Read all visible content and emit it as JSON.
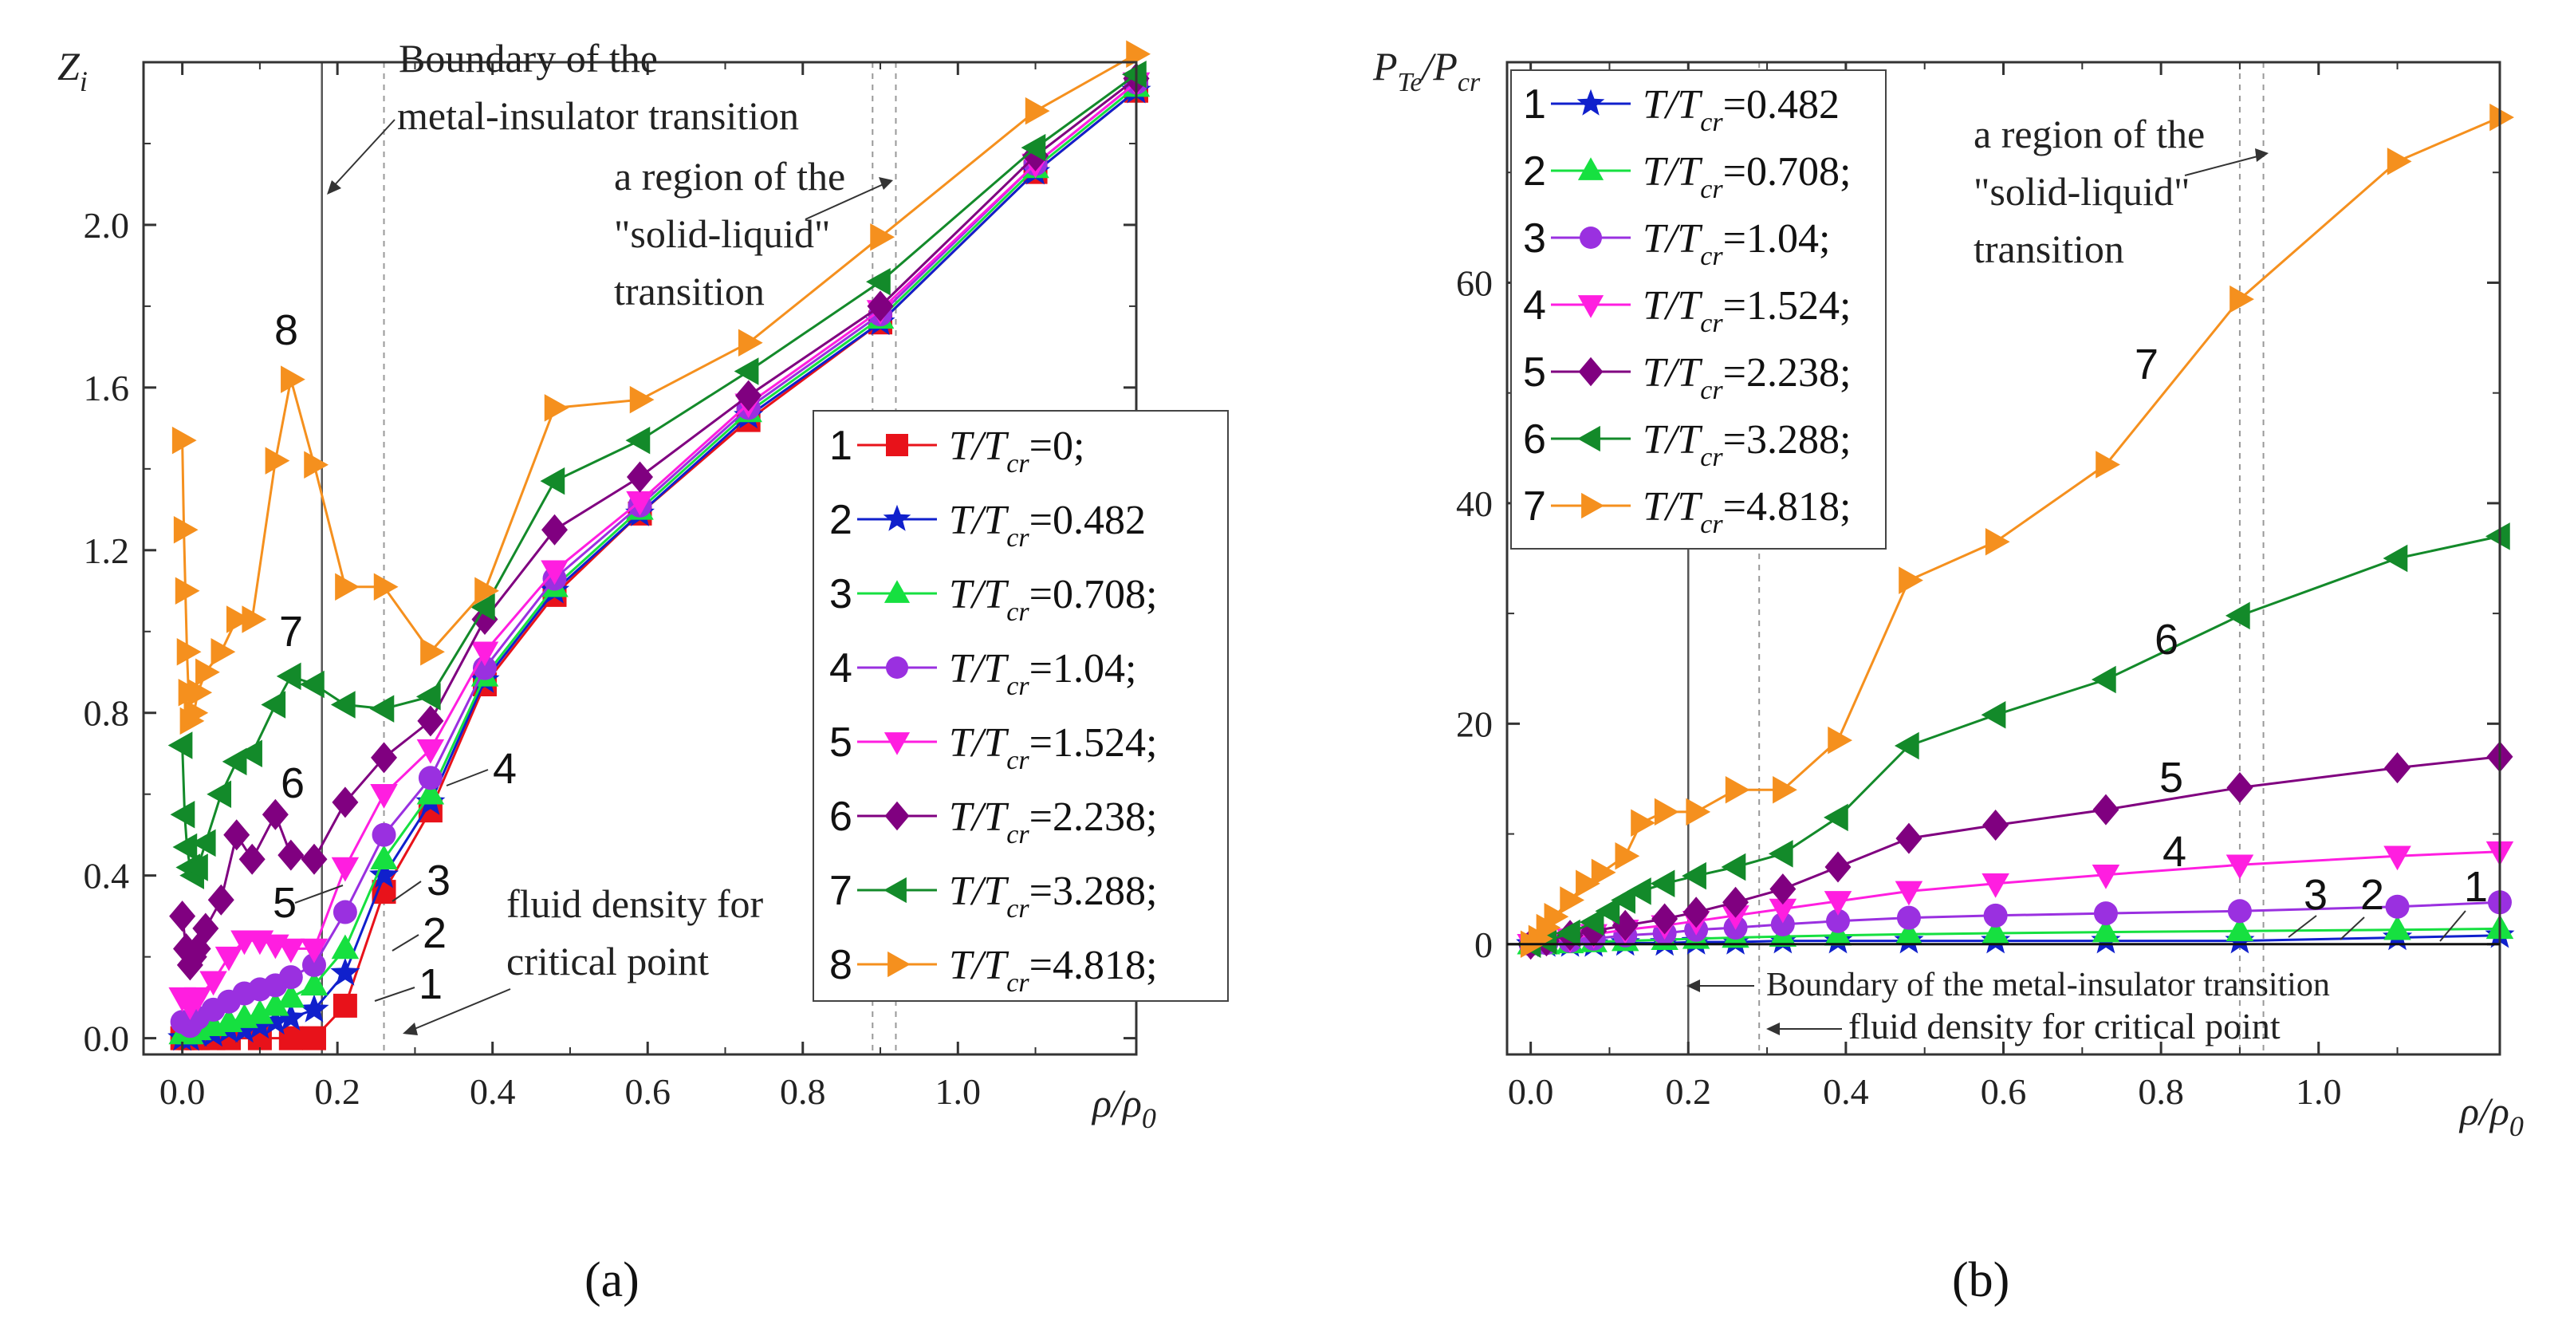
{
  "chart_data": [
    {
      "type": "line",
      "panel_label": "(a)",
      "ylabel_main": "Z",
      "ylabel_sub": "i",
      "xlabel_main": "ρ/ρ",
      "xlabel_sub": "0",
      "xlim": [
        -0.05,
        1.23
      ],
      "ylim": [
        -0.04,
        2.4
      ],
      "xticks": [
        "0.0",
        "0.2",
        "0.4",
        "0.6",
        "0.8",
        "1.0"
      ],
      "xtick_values": [
        0,
        0.2,
        0.4,
        0.6,
        0.8,
        1.0
      ],
      "yticks": [
        "0.0",
        "0.4",
        "0.8",
        "1.2",
        "1.6",
        "2.0"
      ],
      "ytick_values": [
        0,
        0.4,
        0.8,
        1.2,
        1.6,
        2.0
      ],
      "vlines": [
        {
          "x": 0.18,
          "style": "solid"
        },
        {
          "x": 0.26,
          "style": "dotted"
        },
        {
          "x": 0.89,
          "style": "dotted"
        },
        {
          "x": 0.92,
          "style": "dotted"
        }
      ],
      "annotations": [
        {
          "lines": [
            "Boundary of the",
            "metal-insulator transition"
          ]
        },
        {
          "lines": [
            "a region of the",
            "\"solid-liquid\"",
            "transition"
          ]
        },
        {
          "lines": [
            "fluid density for",
            "critical point"
          ]
        }
      ],
      "series": [
        {
          "id": "1",
          "name_main": "T/T",
          "name_sub": "cr",
          "name_value": "=0;",
          "color": "#e8121a",
          "marker": "square",
          "x": [
            0,
            0.01,
            0.02,
            0.04,
            0.06,
            0.1,
            0.14,
            0.17,
            0.21,
            0.26,
            0.32,
            0.39,
            0.48,
            0.59,
            0.73,
            0.9,
            1.1,
            1.23
          ],
          "y": [
            0,
            0,
            0,
            0,
            0,
            0,
            0,
            0,
            0.08,
            0.36,
            0.56,
            0.87,
            1.09,
            1.29,
            1.52,
            1.76,
            2.13,
            2.33
          ]
        },
        {
          "id": "2",
          "name_main": "T/T",
          "name_sub": "cr",
          "name_value": "=0.482",
          "color": "#1020cc",
          "marker": "star",
          "x": [
            0,
            0.01,
            0.02,
            0.04,
            0.06,
            0.08,
            0.1,
            0.12,
            0.14,
            0.17,
            0.21,
            0.26,
            0.32,
            0.39,
            0.48,
            0.59,
            0.73,
            0.9,
            1.1,
            1.23
          ],
          "y": [
            0,
            0,
            0.01,
            0.01,
            0.02,
            0.02,
            0.03,
            0.04,
            0.05,
            0.07,
            0.16,
            0.4,
            0.58,
            0.88,
            1.1,
            1.29,
            1.53,
            1.76,
            2.13,
            2.33
          ]
        },
        {
          "id": "3",
          "name_main": "T/T",
          "name_sub": "cr",
          "name_value": "=0.708;",
          "color": "#16e040",
          "marker": "triangle-up",
          "x": [
            0,
            0.01,
            0.02,
            0.04,
            0.06,
            0.08,
            0.1,
            0.12,
            0.14,
            0.17,
            0.21,
            0.26,
            0.32,
            0.39,
            0.48,
            0.59,
            0.73,
            0.9,
            1.1,
            1.23
          ],
          "y": [
            0.01,
            0.01,
            0.02,
            0.03,
            0.04,
            0.05,
            0.06,
            0.08,
            0.1,
            0.13,
            0.22,
            0.44,
            0.6,
            0.89,
            1.11,
            1.3,
            1.54,
            1.77,
            2.14,
            2.34
          ]
        },
        {
          "id": "4",
          "name_main": "T/T",
          "name_sub": "cr",
          "name_value": "=1.04;",
          "color": "#9a30e0",
          "marker": "circle",
          "x": [
            0,
            0.01,
            0.02,
            0.04,
            0.06,
            0.08,
            0.1,
            0.12,
            0.14,
            0.17,
            0.21,
            0.26,
            0.32,
            0.39,
            0.48,
            0.59,
            0.73,
            0.9,
            1.1,
            1.23
          ],
          "y": [
            0.04,
            0.03,
            0.05,
            0.07,
            0.09,
            0.11,
            0.12,
            0.13,
            0.15,
            0.18,
            0.31,
            0.5,
            0.64,
            0.91,
            1.13,
            1.31,
            1.55,
            1.78,
            2.15,
            2.35
          ]
        },
        {
          "id": "5",
          "name_main": "T/T",
          "name_sub": "cr",
          "name_value": "=1.524;",
          "color": "#ff1ee0",
          "marker": "triangle-down",
          "x": [
            0,
            0.01,
            0.02,
            0.04,
            0.06,
            0.08,
            0.1,
            0.12,
            0.14,
            0.17,
            0.21,
            0.26,
            0.32,
            0.39,
            0.48,
            0.59,
            0.73,
            0.9,
            1.1,
            1.23
          ],
          "y": [
            0.1,
            0.08,
            0.1,
            0.14,
            0.2,
            0.24,
            0.24,
            0.23,
            0.22,
            0.22,
            0.42,
            0.6,
            0.71,
            0.95,
            1.15,
            1.32,
            1.56,
            1.79,
            2.15,
            2.35
          ]
        },
        {
          "id": "6",
          "name_main": "T/T",
          "name_sub": "cr",
          "name_value": "=2.238;",
          "color": "#800080",
          "marker": "diamond",
          "x": [
            0,
            0.005,
            0.01,
            0.015,
            0.02,
            0.03,
            0.05,
            0.07,
            0.09,
            0.12,
            0.14,
            0.17,
            0.21,
            0.26,
            0.32,
            0.39,
            0.48,
            0.59,
            0.73,
            0.9,
            1.1,
            1.23
          ],
          "y": [
            0.3,
            0.22,
            0.18,
            0.2,
            0.22,
            0.27,
            0.34,
            0.5,
            0.44,
            0.55,
            0.45,
            0.44,
            0.58,
            0.69,
            0.78,
            1.03,
            1.25,
            1.38,
            1.58,
            1.8,
            2.17,
            2.36
          ]
        },
        {
          "id": "7",
          "name_main": "T/T",
          "name_sub": "cr",
          "name_value": "=3.288;",
          "color": "#138a2a",
          "marker": "triangle-left",
          "x": [
            0,
            0.003,
            0.006,
            0.01,
            0.015,
            0.02,
            0.03,
            0.05,
            0.07,
            0.09,
            0.12,
            0.14,
            0.17,
            0.21,
            0.26,
            0.32,
            0.39,
            0.48,
            0.59,
            0.73,
            0.9,
            1.1,
            1.23
          ],
          "y": [
            0.72,
            0.55,
            0.47,
            0.42,
            0.4,
            0.42,
            0.48,
            0.6,
            0.68,
            0.7,
            0.82,
            0.89,
            0.87,
            0.82,
            0.81,
            0.84,
            1.06,
            1.37,
            1.47,
            1.64,
            1.86,
            2.19,
            2.37
          ]
        },
        {
          "id": "8",
          "name_main": "T/T",
          "name_sub": "cr",
          "name_value": "=4.818;",
          "color": "#f5901e",
          "marker": "triangle-right",
          "x": [
            0,
            0.002,
            0.004,
            0.006,
            0.008,
            0.01,
            0.015,
            0.02,
            0.03,
            0.05,
            0.07,
            0.09,
            0.12,
            0.14,
            0.17,
            0.21,
            0.26,
            0.32,
            0.39,
            0.48,
            0.59,
            0.73,
            0.9,
            1.1,
            1.23
          ],
          "y": [
            1.47,
            1.25,
            1.1,
            0.95,
            0.85,
            0.78,
            0.8,
            0.85,
            0.9,
            0.95,
            1.03,
            1.03,
            1.42,
            1.62,
            1.41,
            1.11,
            1.11,
            0.95,
            1.1,
            1.55,
            1.57,
            1.71,
            1.97,
            2.28,
            2.42
          ]
        }
      ]
    },
    {
      "type": "line",
      "panel_label": "(b)",
      "ylabel_main": "P",
      "ylabel_sub1": "Te",
      "ylabel_mid": "/P",
      "ylabel_sub2": "cr",
      "xlabel_main": "ρ/ρ",
      "xlabel_sub": "0",
      "xlim": [
        -0.03,
        1.23
      ],
      "ylim": [
        -10,
        80
      ],
      "xticks": [
        "0.0",
        "0.2",
        "0.4",
        "0.6",
        "0.8",
        "1.0"
      ],
      "xtick_values": [
        0,
        0.2,
        0.4,
        0.6,
        0.8,
        1.0
      ],
      "yticks": [
        "0",
        "20",
        "40",
        "60"
      ],
      "ytick_values": [
        0,
        20,
        40,
        60
      ],
      "vlines": [
        {
          "x": 0.2,
          "style": "solid"
        },
        {
          "x": 0.29,
          "style": "dotted"
        },
        {
          "x": 0.9,
          "style": "dotted"
        },
        {
          "x": 0.93,
          "style": "dotted"
        }
      ],
      "annotations": [
        {
          "lines": [
            "a region of the",
            "\"solid-liquid\"",
            "transition"
          ]
        },
        {
          "lines": [
            "Boundary of the metal-insulator transition"
          ]
        },
        {
          "lines": [
            "fluid density for critical point"
          ]
        }
      ],
      "series": [
        {
          "id": "1",
          "name_main": "T/T",
          "name_sub": "cr",
          "name_value": "=0.482",
          "color": "#1020cc",
          "marker": "star",
          "x": [
            0,
            0.02,
            0.05,
            0.08,
            0.12,
            0.17,
            0.21,
            0.26,
            0.32,
            0.39,
            0.48,
            0.59,
            0.73,
            0.9,
            1.1,
            1.23
          ],
          "y": [
            0,
            0,
            0,
            0,
            0.1,
            0.1,
            0.2,
            0.2,
            0.3,
            0.3,
            0.3,
            0.3,
            0.3,
            0.3,
            0.6,
            0.8
          ]
        },
        {
          "id": "2",
          "name_main": "T/T",
          "name_sub": "cr",
          "name_value": "=0.708;",
          "color": "#16e040",
          "marker": "triangle-up",
          "x": [
            0,
            0.02,
            0.05,
            0.08,
            0.12,
            0.17,
            0.21,
            0.26,
            0.32,
            0.39,
            0.48,
            0.59,
            0.73,
            0.9,
            1.1,
            1.23
          ],
          "y": [
            0,
            0,
            0.1,
            0.2,
            0.3,
            0.4,
            0.5,
            0.6,
            0.7,
            0.8,
            0.9,
            1.0,
            1.1,
            1.2,
            1.3,
            1.4
          ]
        },
        {
          "id": "3",
          "name_main": "T/T",
          "name_sub": "cr",
          "name_value": "=1.04;",
          "color": "#9a30e0",
          "marker": "circle",
          "x": [
            0,
            0.02,
            0.05,
            0.08,
            0.12,
            0.17,
            0.21,
            0.26,
            0.32,
            0.39,
            0.48,
            0.59,
            0.73,
            0.9,
            1.1,
            1.23
          ],
          "y": [
            0,
            0.1,
            0.3,
            0.5,
            0.8,
            1.0,
            1.3,
            1.5,
            1.8,
            2.1,
            2.4,
            2.6,
            2.8,
            3.0,
            3.4,
            3.8
          ]
        },
        {
          "id": "4",
          "name_main": "T/T",
          "name_sub": "cr",
          "name_value": "=1.524;",
          "color": "#ff1ee0",
          "marker": "triangle-down",
          "x": [
            0,
            0.02,
            0.05,
            0.08,
            0.12,
            0.17,
            0.21,
            0.26,
            0.32,
            0.39,
            0.48,
            0.59,
            0.73,
            0.9,
            1.1,
            1.23
          ],
          "y": [
            0,
            0.2,
            0.5,
            0.9,
            1.3,
            1.7,
            2.1,
            2.6,
            3.2,
            3.9,
            4.8,
            5.5,
            6.3,
            7.2,
            8.0,
            8.4
          ]
        },
        {
          "id": "5",
          "name_main": "T/T",
          "name_sub": "cr",
          "name_value": "=2.238;",
          "color": "#800080",
          "marker": "diamond",
          "x": [
            0,
            0.02,
            0.05,
            0.08,
            0.12,
            0.17,
            0.21,
            0.26,
            0.32,
            0.39,
            0.48,
            0.59,
            0.73,
            0.9,
            1.1,
            1.23
          ],
          "y": [
            0,
            0.3,
            0.8,
            1.2,
            1.7,
            2.3,
            2.9,
            3.8,
            5.0,
            7.0,
            9.6,
            10.8,
            12.2,
            14.2,
            16.0,
            17.0
          ]
        },
        {
          "id": "6",
          "name_main": "T/T",
          "name_sub": "cr",
          "name_value": "=3.288;",
          "color": "#138a2a",
          "marker": "triangle-left",
          "x": [
            0,
            0.02,
            0.05,
            0.08,
            0.1,
            0.12,
            0.14,
            0.17,
            0.21,
            0.26,
            0.32,
            0.39,
            0.48,
            0.59,
            0.73,
            0.9,
            1.1,
            1.23
          ],
          "y": [
            0,
            0.3,
            1.0,
            2.0,
            3.0,
            4.0,
            4.8,
            5.5,
            6.2,
            7.0,
            8.2,
            11.5,
            18.0,
            20.8,
            24.0,
            29.8,
            35.0,
            37.0
          ]
        },
        {
          "id": "7",
          "name_main": "T/T",
          "name_sub": "cr",
          "name_value": "=4.818;",
          "color": "#f5901e",
          "marker": "triangle-right",
          "x": [
            0,
            0.01,
            0.02,
            0.03,
            0.05,
            0.07,
            0.09,
            0.12,
            0.14,
            0.17,
            0.21,
            0.26,
            0.32,
            0.39,
            0.48,
            0.59,
            0.73,
            0.9,
            1.1,
            1.23
          ],
          "y": [
            0,
            0.5,
            1.5,
            2.5,
            4.0,
            5.5,
            6.5,
            8.0,
            11.0,
            12.0,
            12.0,
            14.0,
            14.0,
            18.5,
            33.0,
            36.5,
            43.5,
            58.5,
            71.0,
            75.0
          ]
        }
      ]
    }
  ]
}
